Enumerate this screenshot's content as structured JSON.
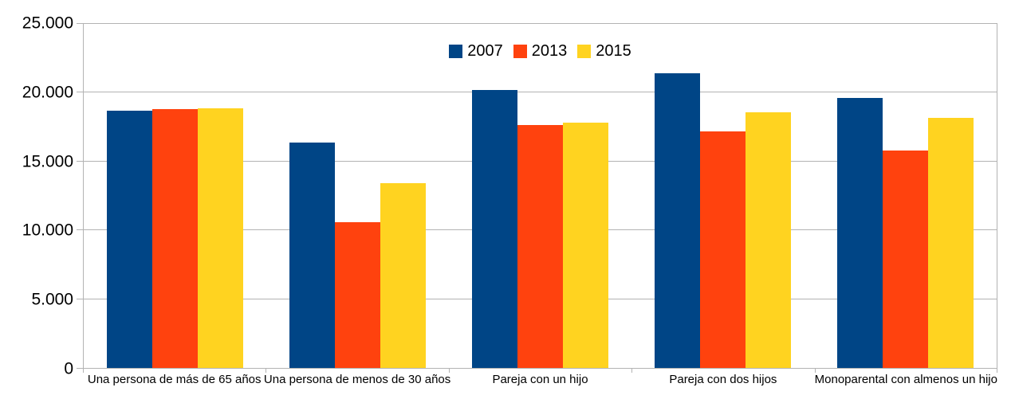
{
  "chart_data": {
    "type": "bar",
    "title": "",
    "categories": [
      "Una persona de más de 65 años",
      "Una persona de menos de 30 años",
      "Pareja con un hijo",
      "Pareja con dos hijos",
      "Monoparental con almenos un hijo"
    ],
    "series": [
      {
        "name": "2007",
        "color": "#004586",
        "values": [
          18700,
          16350,
          20200,
          21400,
          19600
        ]
      },
      {
        "name": "2013",
        "color": "#ff420e",
        "values": [
          18830,
          10600,
          17650,
          17200,
          15800
        ]
      },
      {
        "name": "2015",
        "color": "#ffd320",
        "values": [
          18880,
          13400,
          17800,
          18600,
          18150
        ]
      }
    ],
    "xlabel": "",
    "ylabel": "",
    "ylim": [
      0,
      25000
    ],
    "yticks": [
      0,
      5000,
      10000,
      15000,
      20000,
      25000
    ],
    "ytick_labels": [
      "0",
      "5.000",
      "10.000",
      "15.000",
      "20.000",
      "25.000"
    ],
    "grid": true,
    "legend_position": "top-center",
    "colors": {
      "axis": "#b3b3b3",
      "grid": "#b3b3b3",
      "text": "#000000",
      "background": "#ffffff"
    }
  }
}
